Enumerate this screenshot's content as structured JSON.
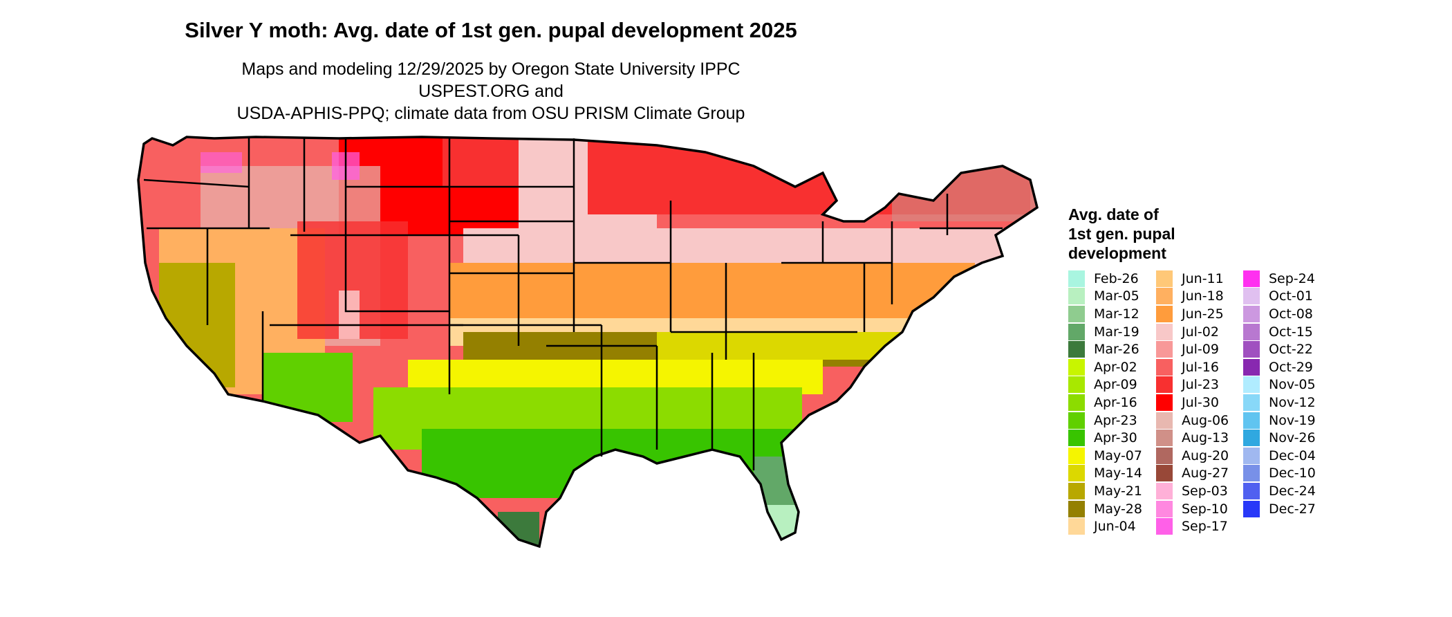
{
  "title": "Silver Y moth: Avg. date of 1st gen. pupal development 2025",
  "subtitle_line1": "Maps and modeling 12/29/2025 by Oregon State University IPPC USPEST.ORG and",
  "subtitle_line2": "USDA-APHIS-PPQ; climate data from OSU PRISM Climate Group",
  "legend": {
    "title_lines": [
      "Avg. date of",
      "1st gen. pupal",
      "development"
    ],
    "items": [
      {
        "label": "Feb-26",
        "color": "#a9f5e0"
      },
      {
        "label": "Mar-05",
        "color": "#b8f0c0"
      },
      {
        "label": "Mar-12",
        "color": "#8fcc8f"
      },
      {
        "label": "Mar-19",
        "color": "#62a868"
      },
      {
        "label": "Mar-26",
        "color": "#3c7a3c"
      },
      {
        "label": "Apr-02",
        "color": "#c8f500"
      },
      {
        "label": "Apr-09",
        "color": "#a8e800"
      },
      {
        "label": "Apr-16",
        "color": "#8cdc00"
      },
      {
        "label": "Apr-23",
        "color": "#60d000"
      },
      {
        "label": "Apr-30",
        "color": "#38c400"
      },
      {
        "label": "May-07",
        "color": "#f5f500"
      },
      {
        "label": "May-14",
        "color": "#dcd800"
      },
      {
        "label": "May-21",
        "color": "#b8a800"
      },
      {
        "label": "May-28",
        "color": "#948000"
      },
      {
        "label": "Jun-04",
        "color": "#ffd898"
      },
      {
        "label": "Jun-11",
        "color": "#ffc878"
      },
      {
        "label": "Jun-18",
        "color": "#ffb060"
      },
      {
        "label": "Jun-25",
        "color": "#ff9c3c"
      },
      {
        "label": "Jul-02",
        "color": "#f8c8c8"
      },
      {
        "label": "Jul-09",
        "color": "#f89898"
      },
      {
        "label": "Jul-16",
        "color": "#f86060"
      },
      {
        "label": "Jul-23",
        "color": "#f83030"
      },
      {
        "label": "Jul-30",
        "color": "#ff0000"
      },
      {
        "label": "Aug-06",
        "color": "#e8b8b0"
      },
      {
        "label": "Aug-13",
        "color": "#d09088"
      },
      {
        "label": "Aug-20",
        "color": "#b06860"
      },
      {
        "label": "Aug-27",
        "color": "#984838"
      },
      {
        "label": "Sep-03",
        "color": "#ffb0d8"
      },
      {
        "label": "Sep-10",
        "color": "#ff88e0"
      },
      {
        "label": "Sep-17",
        "color": "#ff60e8"
      },
      {
        "label": "Sep-24",
        "color": "#ff30f0"
      },
      {
        "label": "Oct-01",
        "color": "#e0c0f0"
      },
      {
        "label": "Oct-08",
        "color": "#cc98e0"
      },
      {
        "label": "Oct-15",
        "color": "#b878d0"
      },
      {
        "label": "Oct-22",
        "color": "#a050c0"
      },
      {
        "label": "Oct-29",
        "color": "#8828b0"
      },
      {
        "label": "Nov-05",
        "color": "#b0ecff"
      },
      {
        "label": "Nov-12",
        "color": "#88d8f8"
      },
      {
        "label": "Nov-19",
        "color": "#60c4f0"
      },
      {
        "label": "Nov-26",
        "color": "#30a8e0"
      },
      {
        "label": "Dec-04",
        "color": "#a0b8f0"
      },
      {
        "label": "Dec-10",
        "color": "#7890e8"
      },
      {
        "label": "Dec-24",
        "color": "#5060f0"
      },
      {
        "label": "Dec-27",
        "color": "#2838f8"
      }
    ]
  }
}
